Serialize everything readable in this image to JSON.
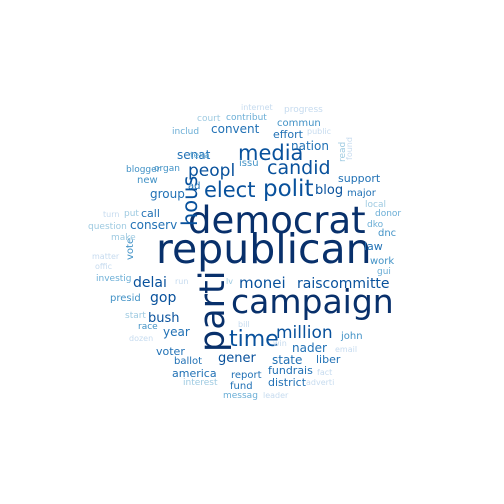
{
  "word_cloud": {
    "words": [
      {
        "text": "republican",
        "weight": 1.0,
        "color": "#08306b"
      },
      {
        "text": "democrat",
        "weight": 0.88,
        "color": "#08306b"
      },
      {
        "text": "campaign",
        "weight": 0.8,
        "color": "#08306b"
      },
      {
        "text": "parti",
        "weight": 0.78,
        "color": "#08306b"
      },
      {
        "text": "polit",
        "weight": 0.55,
        "color": "#08519c"
      },
      {
        "text": "elect",
        "weight": 0.5,
        "color": "#08519c"
      },
      {
        "text": "media",
        "weight": 0.5,
        "color": "#08519c"
      },
      {
        "text": "time",
        "weight": 0.5,
        "color": "#08519c"
      },
      {
        "text": "hous",
        "weight": 0.48,
        "color": "#08519c"
      },
      {
        "text": "candid",
        "weight": 0.45,
        "color": "#08519c"
      },
      {
        "text": "peopl",
        "weight": 0.4,
        "color": "#08519c"
      },
      {
        "text": "million",
        "weight": 0.38,
        "color": "#08519c"
      },
      {
        "text": "monei",
        "weight": 0.35,
        "color": "#08519c"
      },
      {
        "text": "raiscommitte",
        "weight": 0.33,
        "color": "#08519c"
      },
      {
        "text": "delai",
        "weight": 0.3,
        "color": "#08519c"
      },
      {
        "text": "gop",
        "weight": 0.3,
        "color": "#08519c"
      },
      {
        "text": "blog",
        "weight": 0.3,
        "color": "#08519c"
      },
      {
        "text": "gener",
        "weight": 0.28,
        "color": "#08519c"
      },
      {
        "text": "bush",
        "weight": 0.28,
        "color": "#08519c"
      },
      {
        "text": "nation",
        "weight": 0.25,
        "color": "#2171b5"
      },
      {
        "text": "senat",
        "weight": 0.25,
        "color": "#2171b5"
      },
      {
        "text": "convent",
        "weight": 0.25,
        "color": "#2171b5"
      },
      {
        "text": "group",
        "weight": 0.25,
        "color": "#2171b5"
      },
      {
        "text": "support",
        "weight": 0.22,
        "color": "#2171b5"
      },
      {
        "text": "state",
        "weight": 0.25,
        "color": "#2171b5"
      },
      {
        "text": "nader",
        "weight": 0.25,
        "color": "#2171b5"
      },
      {
        "text": "year",
        "weight": 0.24,
        "color": "#2171b5"
      },
      {
        "text": "voter",
        "weight": 0.22,
        "color": "#2171b5"
      },
      {
        "text": "liber",
        "weight": 0.22,
        "color": "#2171b5"
      },
      {
        "text": "fundrais",
        "weight": 0.2,
        "color": "#2171b5"
      },
      {
        "text": "america",
        "weight": 0.2,
        "color": "#2171b5"
      },
      {
        "text": "report",
        "weight": 0.2,
        "color": "#2171b5"
      },
      {
        "text": "district",
        "weight": 0.2,
        "color": "#2171b5"
      },
      {
        "text": "fund",
        "weight": 0.2,
        "color": "#2171b5"
      },
      {
        "text": "ballot",
        "weight": 0.2,
        "color": "#2171b5"
      },
      {
        "text": "effort",
        "weight": 0.22,
        "color": "#2171b5"
      },
      {
        "text": "major",
        "weight": 0.2,
        "color": "#2171b5"
      },
      {
        "text": "law",
        "weight": 0.2,
        "color": "#2171b5"
      },
      {
        "text": "call",
        "weight": 0.2,
        "color": "#2171b5"
      },
      {
        "text": "conserv",
        "weight": 0.22,
        "color": "#2171b5"
      },
      {
        "text": "ad",
        "weight": 0.2,
        "color": "#2171b5"
      },
      {
        "text": "new",
        "weight": 0.18,
        "color": "#4292c6"
      },
      {
        "text": "presid",
        "weight": 0.17,
        "color": "#4292c6"
      },
      {
        "text": "john",
        "weight": 0.17,
        "color": "#4292c6"
      },
      {
        "text": "work",
        "weight": 0.17,
        "color": "#4292c6"
      },
      {
        "text": "commun",
        "weight": 0.17,
        "color": "#4292c6"
      },
      {
        "text": "issu",
        "weight": 0.16,
        "color": "#4292c6"
      },
      {
        "text": "vote",
        "weight": 0.16,
        "color": "#4292c6"
      },
      {
        "text": "dnc",
        "weight": 0.16,
        "color": "#4292c6"
      },
      {
        "text": "race",
        "weight": 0.15,
        "color": "#4292c6"
      },
      {
        "text": "organ",
        "weight": 0.15,
        "color": "#4292c6"
      },
      {
        "text": "blogger",
        "weight": 0.15,
        "color": "#4292c6"
      },
      {
        "text": "contribut",
        "weight": 0.15,
        "color": "#6baed6"
      },
      {
        "text": "texa",
        "weight": 0.15,
        "color": "#6baed6"
      },
      {
        "text": "messag",
        "weight": 0.15,
        "color": "#6baed6"
      },
      {
        "text": "interest",
        "weight": 0.15,
        "color": "#9ecae1"
      },
      {
        "text": "includ",
        "weight": 0.15,
        "color": "#6baed6"
      },
      {
        "text": "court",
        "weight": 0.15,
        "color": "#9ecae1"
      },
      {
        "text": "progress",
        "weight": 0.15,
        "color": "#c6dbef"
      },
      {
        "text": "internet",
        "weight": 0.13,
        "color": "#c6dbef"
      },
      {
        "text": "public",
        "weight": 0.13,
        "color": "#c6dbef"
      },
      {
        "text": "read",
        "weight": 0.15,
        "color": "#9ecae1"
      },
      {
        "text": "donor",
        "weight": 0.15,
        "color": "#6baed6"
      },
      {
        "text": "dko",
        "weight": 0.15,
        "color": "#6baed6"
      },
      {
        "text": "local",
        "weight": 0.15,
        "color": "#9ecae1"
      },
      {
        "text": "gui",
        "weight": 0.15,
        "color": "#6baed6"
      },
      {
        "text": "investig",
        "weight": 0.14,
        "color": "#6baed6"
      },
      {
        "text": "start",
        "weight": 0.14,
        "color": "#9ecae1"
      },
      {
        "text": "make",
        "weight": 0.14,
        "color": "#9ecae1"
      },
      {
        "text": "question",
        "weight": 0.14,
        "color": "#9ecae1"
      },
      {
        "text": "matter",
        "weight": 0.13,
        "color": "#c6dbef"
      },
      {
        "text": "offic",
        "weight": 0.13,
        "color": "#c6dbef"
      },
      {
        "text": "turn",
        "weight": 0.13,
        "color": "#c6dbef"
      },
      {
        "text": "put",
        "weight": 0.14,
        "color": "#9ecae1"
      },
      {
        "text": "dozen",
        "weight": 0.13,
        "color": "#c6dbef"
      },
      {
        "text": "fact",
        "weight": 0.13,
        "color": "#c6dbef"
      },
      {
        "text": "email",
        "weight": 0.13,
        "color": "#c6dbef"
      },
      {
        "text": "adverti",
        "weight": 0.13,
        "color": "#c6dbef"
      },
      {
        "text": "leader",
        "weight": 0.13,
        "color": "#c6dbef"
      },
      {
        "text": "bill",
        "weight": 0.13,
        "color": "#c6dbef"
      },
      {
        "text": "lv",
        "weight": 0.13,
        "color": "#9ecae1"
      },
      {
        "text": "run",
        "weight": 0.13,
        "color": "#c6dbef"
      },
      {
        "text": "found",
        "weight": 0.13,
        "color": "#c6dbef"
      },
      {
        "text": "win",
        "weight": 0.13,
        "color": "#c6dbef"
      }
    ]
  }
}
